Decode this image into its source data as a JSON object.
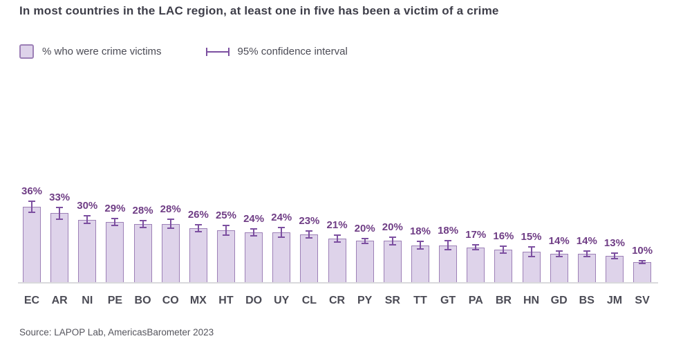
{
  "title": "In most countries in the LAC region, at least one in five has been a victim of a crime",
  "legend": {
    "bar_swatch_icon": "bar-swatch",
    "bar_label": "% who were crime victims",
    "ci_marker_icon": "i-beam",
    "ci_label": "95% confidence interval"
  },
  "source": "Source: LAPOP Lab, AmericasBarometer 2023",
  "colors": {
    "title_text": "#3e3e49",
    "legend_text": "#4b4b55",
    "bar_fill": "#ded3ea",
    "bar_border": "#9c7fb6",
    "error_bar": "#7c4fa0",
    "value_label": "#6f3d85",
    "axis_line": "#d9d9dc",
    "country_label": "#4b4b55",
    "source_text": "#55555d"
  },
  "chart_data": {
    "type": "bar",
    "title": "In most countries in the LAC region, at least one in five has been a victim of a crime",
    "categories": [
      "EC",
      "AR",
      "NI",
      "PE",
      "BO",
      "CO",
      "MX",
      "HT",
      "DO",
      "UY",
      "CL",
      "CR",
      "PY",
      "SR",
      "TT",
      "GT",
      "PA",
      "BR",
      "HN",
      "GD",
      "BS",
      "JM",
      "SV"
    ],
    "values": [
      36,
      33,
      30,
      29,
      28,
      28,
      26,
      25,
      24,
      24,
      23,
      21,
      20,
      20,
      18,
      18,
      17,
      16,
      15,
      14,
      14,
      13,
      10
    ],
    "value_labels": [
      "36%",
      "33%",
      "30%",
      "29%",
      "28%",
      "28%",
      "26%",
      "25%",
      "24%",
      "24%",
      "23%",
      "21%",
      "20%",
      "20%",
      "18%",
      "18%",
      "17%",
      "16%",
      "15%",
      "14%",
      "14%",
      "13%",
      "10%"
    ],
    "ci_half_width": [
      3,
      3,
      2,
      2,
      2,
      2.5,
      2,
      2.5,
      2,
      2.5,
      2,
      2,
      1.5,
      2,
      2,
      2.5,
      1.5,
      2,
      2.5,
      1.5,
      1.5,
      1.5,
      1
    ],
    "series_name": "% who were crime victims",
    "error_bar_name": "95% confidence interval",
    "xlabel": "",
    "ylabel": "",
    "ylim": [
      0,
      40
    ],
    "grid": false,
    "y_axis_visible": false,
    "data_labels": true,
    "legend_position": "top-left",
    "source": "Source: LAPOP Lab, AmericasBarometer 2023"
  }
}
